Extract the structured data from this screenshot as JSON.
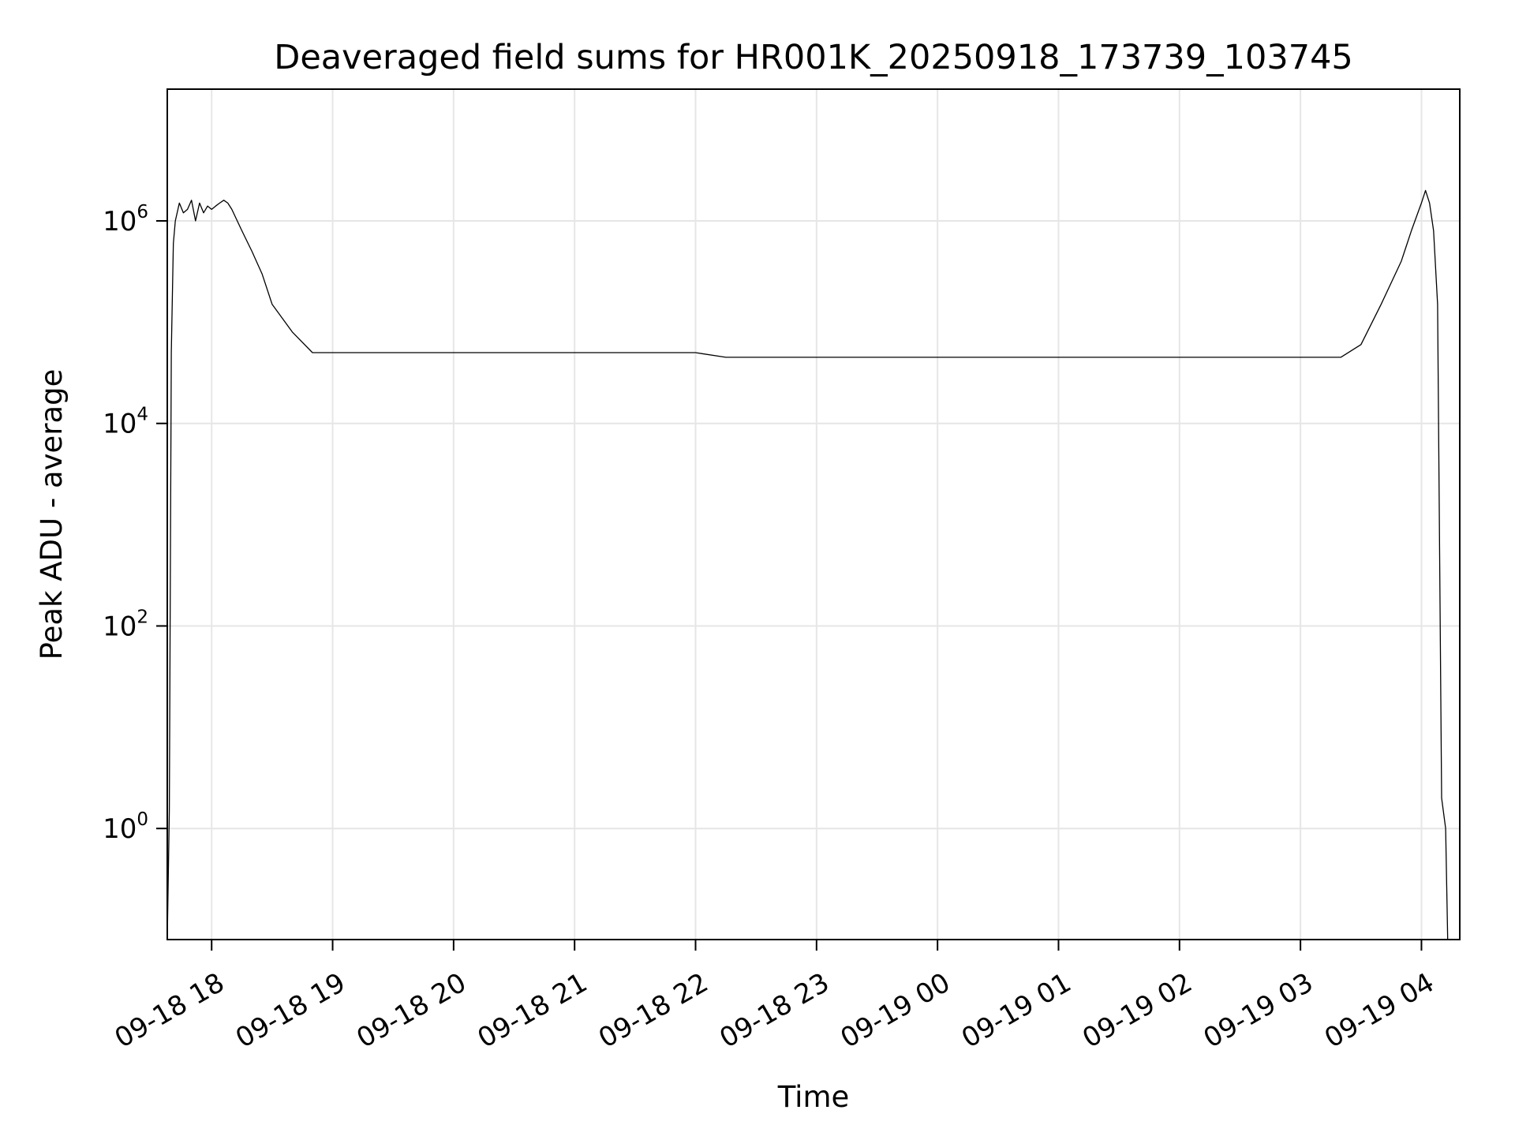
{
  "chart_data": {
    "type": "line",
    "title": "Deaveraged field sums for HR001K_20250918_173739_103745",
    "xlabel": "Time",
    "ylabel": "Peak ADU - average",
    "yscale": "log",
    "ylim": [
      0.08,
      20000000
    ],
    "xlim": [
      "2025-09-18 17:38",
      "2025-09-19 04:19"
    ],
    "grid": true,
    "series_color": "#000000",
    "grid_color": "#e6e6e6",
    "x_ticks": [
      {
        "value": "2025-09-18 18:00",
        "label": "09-18 18"
      },
      {
        "value": "2025-09-18 19:00",
        "label": "09-18 19"
      },
      {
        "value": "2025-09-18 20:00",
        "label": "09-18 20"
      },
      {
        "value": "2025-09-18 21:00",
        "label": "09-18 21"
      },
      {
        "value": "2025-09-18 22:00",
        "label": "09-18 22"
      },
      {
        "value": "2025-09-18 23:00",
        "label": "09-18 23"
      },
      {
        "value": "2025-09-19 00:00",
        "label": "09-19 00"
      },
      {
        "value": "2025-09-19 01:00",
        "label": "09-19 01"
      },
      {
        "value": "2025-09-19 02:00",
        "label": "09-19 02"
      },
      {
        "value": "2025-09-19 03:00",
        "label": "09-19 03"
      },
      {
        "value": "2025-09-19 04:00",
        "label": "09-19 04"
      }
    ],
    "y_ticks": [
      {
        "value": 1,
        "base": "10",
        "exp": "0"
      },
      {
        "value": 100,
        "base": "10",
        "exp": "2"
      },
      {
        "value": 10000,
        "base": "10",
        "exp": "4"
      },
      {
        "value": 1000000,
        "base": "10",
        "exp": "6"
      }
    ],
    "x": [
      "2025-09-18 17:38",
      "2025-09-18 17:39",
      "2025-09-18 17:40",
      "2025-09-18 17:41",
      "2025-09-18 17:42",
      "2025-09-18 17:44",
      "2025-09-18 17:46",
      "2025-09-18 17:48",
      "2025-09-18 17:50",
      "2025-09-18 17:52",
      "2025-09-18 17:54",
      "2025-09-18 17:56",
      "2025-09-18 17:58",
      "2025-09-18 18:00",
      "2025-09-18 18:02",
      "2025-09-18 18:04",
      "2025-09-18 18:06",
      "2025-09-18 18:08",
      "2025-09-18 18:10",
      "2025-09-18 18:15",
      "2025-09-18 18:20",
      "2025-09-18 18:25",
      "2025-09-18 18:30",
      "2025-09-18 18:40",
      "2025-09-18 18:50",
      "2025-09-18 19:00",
      "2025-09-18 19:30",
      "2025-09-18 20:00",
      "2025-09-18 20:30",
      "2025-09-18 21:00",
      "2025-09-18 21:30",
      "2025-09-18 22:00",
      "2025-09-18 22:15",
      "2025-09-18 22:30",
      "2025-09-18 23:00",
      "2025-09-18 23:30",
      "2025-09-19 00:00",
      "2025-09-19 00:30",
      "2025-09-19 01:00",
      "2025-09-19 01:30",
      "2025-09-19 02:00",
      "2025-09-19 02:30",
      "2025-09-19 03:00",
      "2025-09-19 03:20",
      "2025-09-19 03:30",
      "2025-09-19 03:40",
      "2025-09-19 03:50",
      "2025-09-19 03:55",
      "2025-09-19 04:00",
      "2025-09-19 04:02",
      "2025-09-19 04:04",
      "2025-09-19 04:06",
      "2025-09-19 04:08",
      "2025-09-19 04:10",
      "2025-09-19 04:12",
      "2025-09-19 04:13"
    ],
    "y": [
      0.08,
      1.5,
      50000,
      600000,
      1000000,
      1500000,
      1200000,
      1300000,
      1600000,
      1000000,
      1500000,
      1200000,
      1400000,
      1300000,
      1400000,
      1500000,
      1600000,
      1500000,
      1300000,
      800000,
      500000,
      300000,
      150000,
      80000,
      50000,
      50000,
      50000,
      50000,
      50000,
      50000,
      50000,
      50000,
      45000,
      45000,
      45000,
      45000,
      45000,
      45000,
      45000,
      45000,
      45000,
      45000,
      45000,
      45000,
      60000,
      150000,
      400000,
      800000,
      1500000,
      2000000,
      1500000,
      800000,
      150000,
      2,
      1,
      0.08
    ]
  }
}
